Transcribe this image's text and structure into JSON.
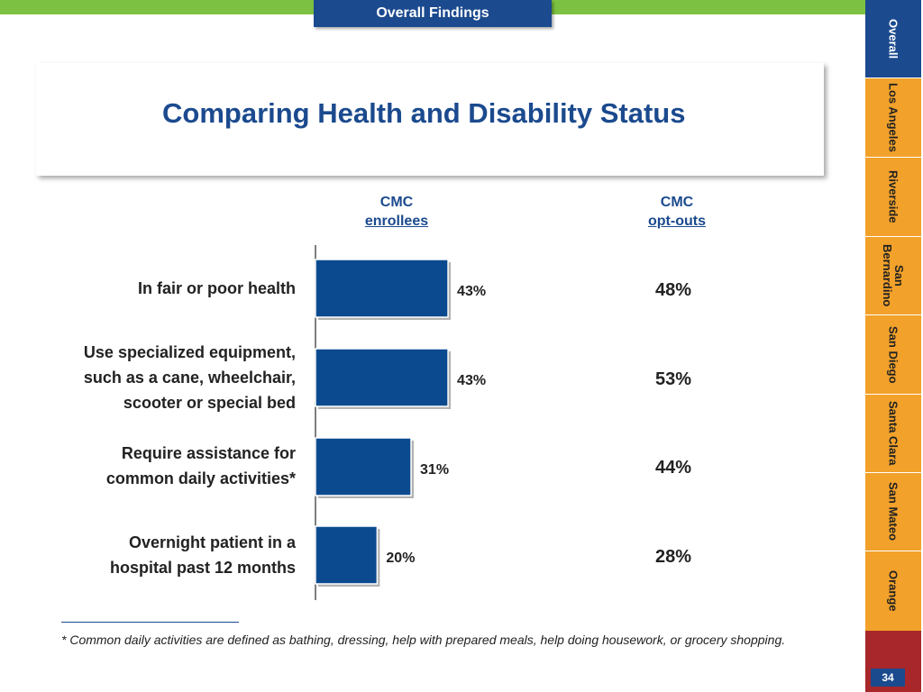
{
  "header": {
    "section_label": "Overall Findings",
    "title": "Comparing Health and Disability Status"
  },
  "columns": {
    "enrollees": {
      "line1": "CMC",
      "line2": "enrollees"
    },
    "optouts": {
      "line1": "CMC",
      "line2": "opt-outs"
    }
  },
  "rows": [
    {
      "label_lines": [
        "In fair or poor health"
      ],
      "opt_out": "48%"
    },
    {
      "label_lines": [
        "Use specialized equipment,",
        "such as a cane, wheelchair,",
        "scooter or special bed"
      ],
      "opt_out": "53%"
    },
    {
      "label_lines": [
        "Require assistance for",
        "common daily activities*"
      ],
      "opt_out": "44%"
    },
    {
      "label_lines": [
        "Overnight patient in a",
        "hospital past 12 months"
      ],
      "opt_out": "28%"
    }
  ],
  "footnote": "* Common daily activities are defined as bathing, dressing, help with prepared meals, help doing housework, or grocery shopping.",
  "sidebar": {
    "tabs": [
      {
        "label": "Overall",
        "active": true
      },
      {
        "label": "Los Angeles",
        "active": false
      },
      {
        "label": "Riverside",
        "active": false
      },
      {
        "label": "San Bernardino",
        "active": false
      },
      {
        "label": "San Diego",
        "active": false
      },
      {
        "label": "Santa Clara",
        "active": false
      },
      {
        "label": "San Mateo",
        "active": false
      },
      {
        "label": "Orange",
        "active": false
      }
    ]
  },
  "page_number": "34",
  "colors": {
    "brand_blue": "#1b4a8e",
    "bar_fill": "#0b4a8f",
    "tab_orange": "#f2a12a",
    "top_green": "#7dc142",
    "bottom_red": "#a7272b"
  },
  "chart_data": {
    "type": "bar",
    "orientation": "horizontal",
    "series": [
      {
        "name": "CMC enrollees",
        "values": [
          43,
          43,
          31,
          20
        ]
      },
      {
        "name": "CMC opt-outs",
        "values": [
          48,
          53,
          44,
          28
        ]
      }
    ],
    "categories": [
      "In fair or poor health",
      "Use specialized equipment, such as a cane, wheelchair, scooter or special bed",
      "Require assistance for common daily activities*",
      "Overnight patient in a hospital past 12 months"
    ],
    "value_labels": [
      "43%",
      "43%",
      "31%",
      "20%"
    ],
    "unit": "%",
    "xlim": [
      0,
      100
    ]
  }
}
